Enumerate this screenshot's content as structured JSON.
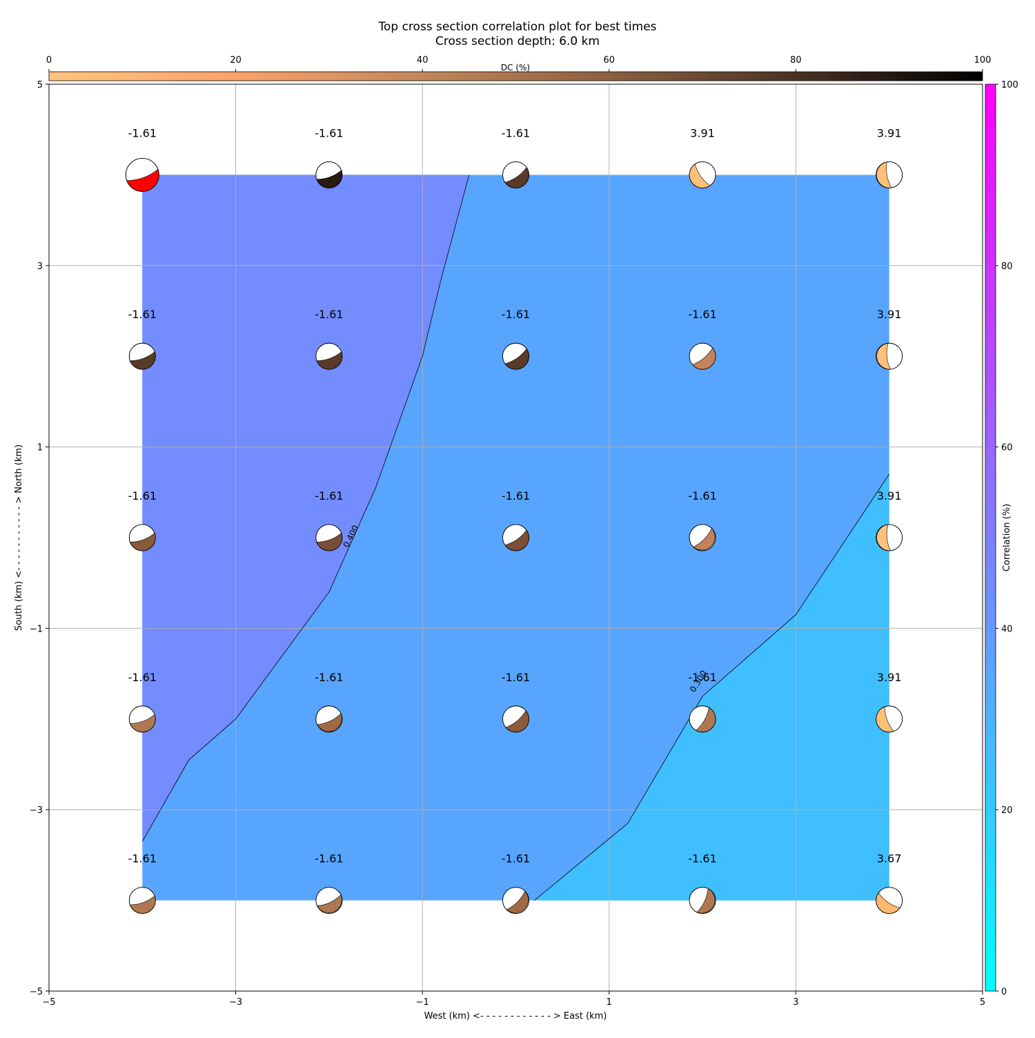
{
  "chart_data": {
    "type": "heatmap",
    "title": "Top cross section correlation plot for best times",
    "subtitle": "Cross section depth: 6.0 km",
    "xlabel": "West (km) <- - - - - - - - - - - - > East (km)",
    "ylabel": "South (km) <- - - - - - - - - - - > North (km)",
    "xlim": [
      -5,
      5
    ],
    "ylim": [
      -5,
      5
    ],
    "x_ticks": [
      "−5",
      "−3",
      "−1",
      "1",
      "3",
      "5"
    ],
    "y_ticks": [
      "−5",
      "−3",
      "−1",
      "1",
      "3",
      "5"
    ],
    "grid": true,
    "dc_colorbar": {
      "label": "DC (%)",
      "ticks": [
        "0",
        "20",
        "40",
        "60",
        "80",
        "100"
      ],
      "placement": "top",
      "colors": [
        "#ffc57f",
        "#f9a26a",
        "#c4865a",
        "#8c6040",
        "#4a3224",
        "#000000"
      ]
    },
    "correlation_colorbar": {
      "label": "Correlation (%)",
      "ticks": [
        "0",
        "20",
        "40",
        "60",
        "80",
        "100"
      ],
      "placement": "right",
      "colors": [
        "#00ffff",
        "#ff00ff"
      ]
    },
    "contour_levels": [
      {
        "label": "0.400",
        "value": 0.4
      },
      {
        "label": "0.300",
        "value": 0.3
      }
    ],
    "region_colors": {
      "above_0_4": "#738cff",
      "between": "#58a5ff",
      "below_0_3": "#40bfff"
    },
    "contour_0_4": [
      [
        -4.0,
        -3.35
      ],
      [
        -3.5,
        -2.45
      ],
      [
        -3.0,
        -2.0
      ],
      [
        -2.0,
        -0.6
      ],
      [
        -1.5,
        0.55
      ],
      [
        -1.0,
        2.0
      ],
      [
        -0.8,
        2.85
      ],
      [
        -0.5,
        4.0
      ]
    ],
    "contour_0_3": [
      [
        0.2,
        -4.0
      ],
      [
        1.2,
        -3.15
      ],
      [
        2.0,
        -1.75
      ],
      [
        3.0,
        -0.85
      ],
      [
        4.0,
        0.7
      ]
    ],
    "grid_x": [
      -4,
      -2,
      0,
      2,
      4
    ],
    "grid_y": [
      4,
      2,
      0,
      -2,
      -4
    ],
    "time_labels": [
      [
        "-1.61",
        "-1.61",
        "-1.61",
        "3.91",
        "3.91"
      ],
      [
        "-1.61",
        "-1.61",
        "-1.61",
        "-1.61",
        "3.91"
      ],
      [
        "-1.61",
        "-1.61",
        "-1.61",
        "-1.61",
        "3.91"
      ],
      [
        "-1.61",
        "-1.61",
        "-1.61",
        "-1.61",
        "3.91"
      ],
      [
        "-1.61",
        "-1.61",
        "-1.61",
        "-1.61",
        "3.67"
      ]
    ],
    "beachball_colors": [
      [
        "#ff0000",
        "#2a1a12",
        "#5a3a28",
        "#ffc07a",
        "#ffc07a"
      ],
      [
        "#5a3a28",
        "#5a3a28",
        "#5a3a28",
        "#c4815a",
        "#ffc07a"
      ],
      [
        "#8a5a3a",
        "#7a4f35",
        "#7a4f35",
        "#c4815a",
        "#ffc07a"
      ],
      [
        "#b07850",
        "#a06a45",
        "#8a5a3a",
        "#b07850",
        "#ffc07a"
      ],
      [
        "#b07850",
        "#b07850",
        "#a06a45",
        "#b07850",
        "#ffb870"
      ]
    ],
    "beachball_strike_deg": [
      [
        -20,
        -20,
        -35,
        55,
        80
      ],
      [
        -20,
        -20,
        -35,
        -40,
        85
      ],
      [
        -20,
        -20,
        -35,
        -45,
        85
      ],
      [
        -20,
        -25,
        -40,
        -60,
        70
      ],
      [
        -20,
        -25,
        -45,
        -65,
        35
      ]
    ]
  }
}
